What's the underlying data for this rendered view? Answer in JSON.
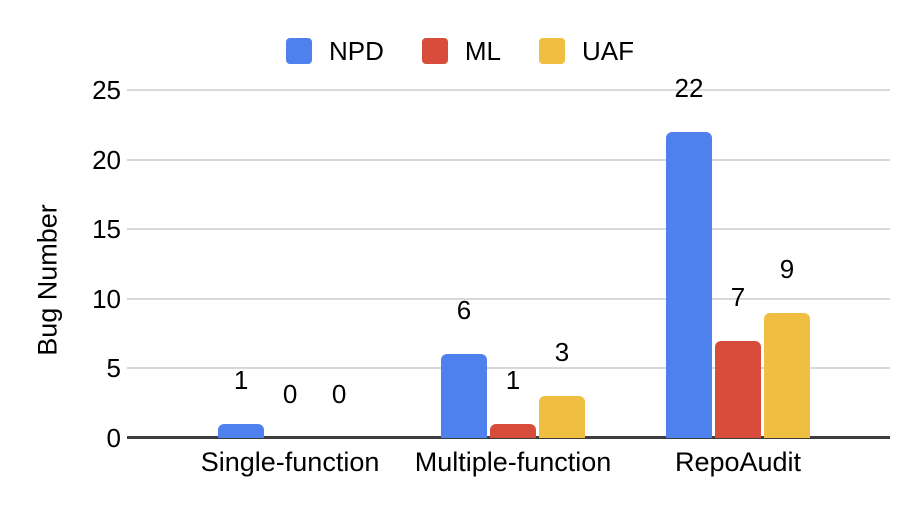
{
  "chart_data": {
    "type": "bar",
    "categories": [
      "Single-function",
      "Multiple-function",
      "RepoAudit"
    ],
    "series": [
      {
        "name": "NPD",
        "color": "#4E81EE",
        "values": [
          1,
          6,
          22
        ]
      },
      {
        "name": "ML",
        "color": "#D84C3C",
        "values": [
          0,
          1,
          7
        ]
      },
      {
        "name": "UAF",
        "color": "#F0BE41",
        "values": [
          0,
          3,
          9
        ]
      }
    ],
    "ylabel": "Bug Number",
    "ylim": [
      0,
      25
    ],
    "yticks": [
      0,
      5,
      10,
      15,
      20,
      25
    ],
    "grid": true,
    "legend_position": "top",
    "value_labels_shown": true
  },
  "colors": {
    "background": "#FFFFFF",
    "gridline": "#D9D9D9",
    "axis_line": "#3C3C3C",
    "text": "#000000"
  }
}
